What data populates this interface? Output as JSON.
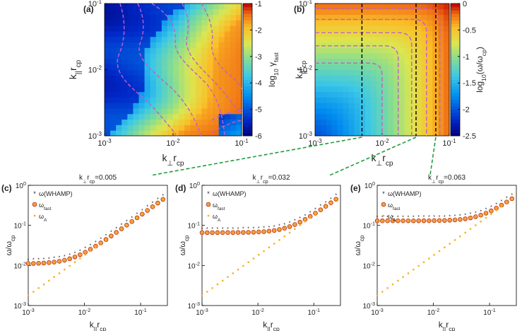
{
  "colors": {
    "contour": "#c060c8",
    "vline": "#000000",
    "connector": "#1f9e3a",
    "whamp": "#3355aa",
    "fast_fill": "#f0a040",
    "fast_edge": "#c03010",
    "alfven": "#f5b020"
  },
  "chart_data": [
    {
      "panel": "(a)",
      "type": "heatmap",
      "xlabel_main": "k",
      "xlabel_sub": "⊥",
      "xlabel_tail": "r",
      "xlabel_tailsub": "cp",
      "ylabel_main": "k",
      "ylabel_sub": "||",
      "ylabel_tail": "r",
      "ylabel_tailsub": "cp",
      "x_scale": "log",
      "y_scale": "log",
      "xlim": [
        0.001,
        0.1
      ],
      "ylim": [
        0.001,
        0.1
      ],
      "xticks": [
        {
          "base": "10",
          "exp": "-3"
        },
        {
          "base": "10",
          "exp": "-2"
        },
        {
          "base": "10",
          "exp": "-1"
        }
      ],
      "yticks": [
        {
          "base": "10",
          "exp": "-3"
        },
        {
          "base": "10",
          "exp": "-2"
        },
        {
          "base": "10",
          "exp": "-1"
        }
      ],
      "colorbar_label_main": "log",
      "colorbar_label_sub": "10",
      "colorbar_label_tail": "γ",
      "colorbar_label_tailsub": "fast",
      "colorbar_range": [
        -6,
        -1
      ],
      "colorbar_ticks": [
        "-1",
        "-2",
        "-3",
        "-4",
        "-5",
        "-6"
      ]
    },
    {
      "panel": "(b)",
      "type": "heatmap",
      "xlabel_main": "k",
      "xlabel_sub": "⊥",
      "xlabel_tail": "r",
      "xlabel_tailsub": "cp",
      "ylabel_main": "k",
      "ylabel_sub": "||",
      "ylabel_tail": "r",
      "ylabel_tailsub": "cp",
      "x_scale": "log",
      "y_scale": "log",
      "xlim": [
        0.001,
        0.1
      ],
      "ylim": [
        0.001,
        0.1
      ],
      "xticks": [
        {
          "base": "10",
          "exp": "-3"
        },
        {
          "base": "10",
          "exp": "-2"
        },
        {
          "base": "10",
          "exp": "-1"
        }
      ],
      "yticks": [
        {
          "base": "10",
          "exp": "-3"
        },
        {
          "base": "10",
          "exp": "-2"
        },
        {
          "base": "10",
          "exp": "-1"
        }
      ],
      "colorbar_label": "log10(ω/ωcp)",
      "colorbar_range": [
        -2.5,
        0
      ],
      "colorbar_ticks": [
        "0",
        "-0.5",
        "-1",
        "-1.5",
        "-2",
        "-2.5"
      ],
      "vertical_lines_kperp": [
        0.005,
        0.032,
        0.063
      ]
    },
    {
      "panel": "(c)",
      "type": "scatter",
      "title_main": "k",
      "title_sub": "⊥",
      "title_tail": "r",
      "title_tailsub": "cp",
      "title_value": "=0.005",
      "kperp": 0.005,
      "xlabel_main": "k",
      "xlabel_sub": "||",
      "xlabel_tail": "r",
      "xlabel_tailsub": "cp",
      "ylabel_main": "ω/ω",
      "ylabel_sub": "cp",
      "x_scale": "log",
      "y_scale": "log",
      "xlim": [
        0.001,
        0.3
      ],
      "ylim": [
        0.001,
        1
      ],
      "xticks": [
        {
          "base": "10",
          "exp": "-3"
        },
        {
          "base": "10",
          "exp": "-2"
        },
        {
          "base": "10",
          "exp": "-1"
        }
      ],
      "yticks": [
        {
          "base": "10",
          "exp": "-3"
        },
        {
          "base": "10",
          "exp": "-2"
        },
        {
          "base": "10",
          "exp": "-1"
        },
        {
          "base": "10",
          "exp": "0"
        }
      ],
      "legend": [
        {
          "key": "whamp",
          "main": "ω(WHAMP)",
          "sub": ""
        },
        {
          "key": "fast",
          "main": "ω",
          "sub": "fast"
        },
        {
          "key": "alfven",
          "main": "ω",
          "sub": "A"
        }
      ],
      "legend_position": "top-left"
    },
    {
      "panel": "(d)",
      "type": "scatter",
      "title_main": "k",
      "title_sub": "⊥",
      "title_tail": "r",
      "title_tailsub": "cp",
      "title_value": "=0.032",
      "kperp": 0.032,
      "xlabel_main": "k",
      "xlabel_sub": "||",
      "xlabel_tail": "r",
      "xlabel_tailsub": "cp",
      "ylabel_main": "ω/ω",
      "ylabel_sub": "cp",
      "x_scale": "log",
      "y_scale": "log",
      "xlim": [
        0.001,
        0.3
      ],
      "ylim": [
        0.001,
        1
      ],
      "xticks": [
        {
          "base": "10",
          "exp": "-3"
        },
        {
          "base": "10",
          "exp": "-2"
        },
        {
          "base": "10",
          "exp": "-1"
        }
      ],
      "yticks": [
        {
          "base": "10",
          "exp": "-3"
        },
        {
          "base": "10",
          "exp": "-2"
        },
        {
          "base": "10",
          "exp": "-1"
        },
        {
          "base": "10",
          "exp": "0"
        }
      ],
      "legend": [
        {
          "key": "whamp",
          "main": "ω(WHAMP)",
          "sub": ""
        },
        {
          "key": "fast",
          "main": "ω",
          "sub": "fast"
        },
        {
          "key": "alfven",
          "main": "ω",
          "sub": "A"
        }
      ],
      "legend_position": "top-left"
    },
    {
      "panel": "(e)",
      "type": "scatter",
      "title_main": "k",
      "title_sub": "⊥",
      "title_tail": "r",
      "title_tailsub": "cp",
      "title_value": "=0.063",
      "kperp": 0.063,
      "xlabel_main": "k",
      "xlabel_sub": "||",
      "xlabel_tail": "r",
      "xlabel_tailsub": "cp",
      "ylabel_main": "ω/ω",
      "ylabel_sub": "cp",
      "x_scale": "log",
      "y_scale": "log",
      "xlim": [
        0.001,
        0.3
      ],
      "ylim": [
        0.001,
        1
      ],
      "xticks": [
        {
          "base": "10",
          "exp": "-3"
        },
        {
          "base": "10",
          "exp": "-2"
        },
        {
          "base": "10",
          "exp": "-1"
        }
      ],
      "yticks": [
        {
          "base": "10",
          "exp": "-3"
        },
        {
          "base": "10",
          "exp": "-2"
        },
        {
          "base": "10",
          "exp": "-1"
        },
        {
          "base": "10",
          "exp": "0"
        }
      ],
      "legend": [
        {
          "key": "whamp",
          "main": "ω(WHAMP)",
          "sub": ""
        },
        {
          "key": "fast",
          "main": "ω",
          "sub": "fast"
        },
        {
          "key": "alfven",
          "main": "ω",
          "sub": "A"
        }
      ],
      "legend_position": "top-left"
    }
  ]
}
